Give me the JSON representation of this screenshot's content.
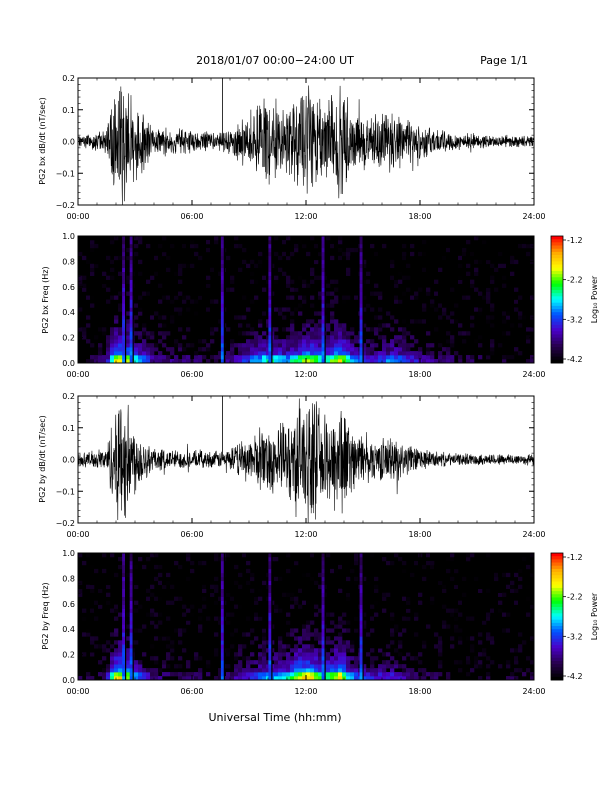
{
  "header": {
    "title": "2018/01/07   00:00−24:00 UT",
    "page": "Page 1/1"
  },
  "footer": {
    "xlabel": "Universal Time (hh:mm)"
  },
  "x_ticks": [
    "00:00",
    "06:00",
    "12:00",
    "18:00",
    "24:00"
  ],
  "colorbar": {
    "label": "Log₁₀ Power",
    "ticks": [
      "-1.2",
      "-2.2",
      "-3.2",
      "-4.2"
    ],
    "colors": [
      "#ff0000",
      "#ffaa00",
      "#ffff00",
      "#00ff00",
      "#00ffff",
      "#0050ff",
      "#4b00c8",
      "#280050",
      "#000000"
    ]
  },
  "chart_data": [
    {
      "type": "line",
      "ylabel": "PG2 bx dB/dt (nT/sec)",
      "xlim": [
        0,
        24
      ],
      "ylim": [
        -0.2,
        0.2
      ],
      "yticks": [
        "0.2",
        "0.1",
        "0.0",
        "−0.1",
        "−0.2"
      ],
      "activity_envelope": {
        "x_hours": [
          0,
          1.5,
          2.0,
          2.5,
          3.0,
          4.0,
          6.0,
          7.5,
          8.0,
          9.0,
          10.0,
          11.0,
          11.7,
          12.2,
          13.0,
          13.8,
          14.5,
          15.5,
          16.5,
          17.5,
          18.5,
          20.0,
          22.0,
          24.0
        ],
        "amplitude": [
          0.02,
          0.04,
          0.22,
          0.22,
          0.15,
          0.05,
          0.04,
          0.03,
          0.05,
          0.1,
          0.15,
          0.12,
          0.17,
          0.2,
          0.14,
          0.22,
          0.11,
          0.08,
          0.12,
          0.08,
          0.05,
          0.03,
          0.02,
          0.02
        ]
      }
    },
    {
      "type": "heatmap",
      "ylabel": "PG2 bx Freq (Hz)",
      "xlim": [
        0,
        24
      ],
      "ylim": [
        0,
        1
      ],
      "yticks": [
        "1.0",
        "0.8",
        "0.6",
        "0.4",
        "0.2",
        "0.0"
      ],
      "value": "Log10 Power",
      "range": [
        -4.2,
        -1.2
      ],
      "bright_columns_hours": [
        2.4,
        2.8,
        7.6,
        10.1,
        12.9,
        14.9
      ]
    },
    {
      "type": "line",
      "ylabel": "PG2 by dB/dt (nT/sec)",
      "xlim": [
        0,
        24
      ],
      "ylim": [
        -0.2,
        0.2
      ],
      "yticks": [
        "0.2",
        "0.1",
        "0.0",
        "−0.1",
        "−0.2"
      ],
      "activity_envelope": {
        "x_hours": [
          0,
          1.5,
          2.0,
          2.5,
          3.0,
          4.0,
          6.0,
          7.5,
          8.0,
          9.0,
          10.0,
          11.0,
          11.7,
          12.2,
          13.0,
          13.8,
          14.5,
          15.5,
          16.5,
          17.5,
          18.5,
          20.0,
          22.0,
          24.0
        ],
        "amplitude": [
          0.02,
          0.04,
          0.22,
          0.22,
          0.12,
          0.04,
          0.03,
          0.03,
          0.04,
          0.08,
          0.12,
          0.13,
          0.22,
          0.22,
          0.15,
          0.22,
          0.1,
          0.07,
          0.08,
          0.05,
          0.03,
          0.02,
          0.02,
          0.02
        ]
      }
    },
    {
      "type": "heatmap",
      "ylabel": "PG2 by Freq (Hz)",
      "xlim": [
        0,
        24
      ],
      "ylim": [
        0,
        1
      ],
      "yticks": [
        "1.0",
        "0.8",
        "0.6",
        "0.4",
        "0.2",
        "0.0"
      ],
      "value": "Log10 Power",
      "range": [
        -4.2,
        -1.2
      ],
      "bright_columns_hours": [
        2.4,
        2.8,
        7.6,
        10.1,
        12.9,
        14.9
      ]
    }
  ]
}
